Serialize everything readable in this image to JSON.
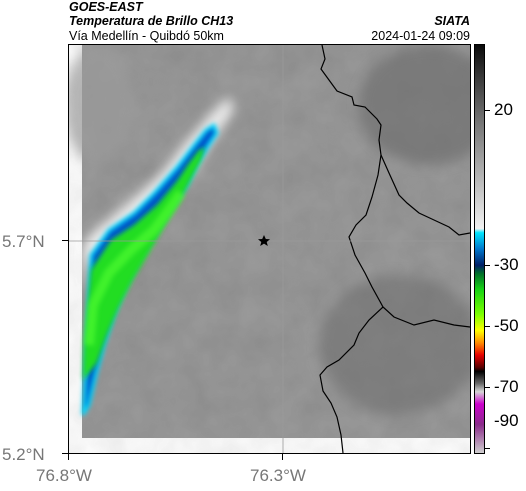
{
  "header": {
    "title": "GOES-EAST",
    "subtitle": "Temperatura de Brillo CH13",
    "route": "Vía Medellín - Quibdó 50km",
    "org": "SIATA",
    "datetime": "2024-01-24 09:09"
  },
  "map": {
    "lat_labels": [
      "5.7°N",
      "5.2°N"
    ],
    "lon_labels": [
      "76.8°W",
      "76.3°W"
    ],
    "marker": "star-icon"
  },
  "colorbar": {
    "labels": [
      "20",
      "-30",
      "-50",
      "-70",
      "-90"
    ]
  },
  "colors": {
    "gray_field": "#8a8a8a",
    "cold_cloud": "#22dd22",
    "cold_edge": "#0044bb",
    "border_line": "#000000"
  }
}
